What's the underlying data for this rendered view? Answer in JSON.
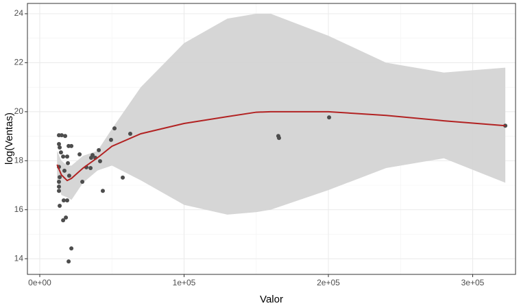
{
  "chart_data": {
    "type": "scatter",
    "x_label": "Valor",
    "y_label": "log(Ventas)",
    "xlim": [
      -8550,
      329700
    ],
    "ylim": [
      13.36,
      24.42
    ],
    "xticks": [
      {
        "value": 0,
        "label": "0e+00"
      },
      {
        "value": 100000,
        "label": "1e+05"
      },
      {
        "value": 200000,
        "label": "2e+05"
      },
      {
        "value": 300000,
        "label": "3e+05"
      }
    ],
    "yticks": [
      14,
      16,
      18,
      20,
      22,
      24
    ],
    "grid": true,
    "points": {
      "color": "#4d4d4d",
      "x": [
        13300,
        15200,
        17600,
        13300,
        13800,
        14700,
        16200,
        19000,
        20000,
        21900,
        19500,
        13300,
        13800,
        13300,
        13300,
        13300,
        13800,
        16600,
        19000,
        16200,
        18100,
        21900,
        20000,
        17100,
        20400,
        27600,
        29500,
        32300,
        35200,
        35600,
        36600,
        38500,
        40900,
        41800,
        43700,
        49400,
        51800,
        57500,
        62700,
        165300,
        165800,
        200500,
        322600
      ],
      "y": [
        19.04,
        19.04,
        19.01,
        18.68,
        18.54,
        18.34,
        18.17,
        18.17,
        18.6,
        18.6,
        17.9,
        17.75,
        17.33,
        17.14,
        16.94,
        16.77,
        16.16,
        16.38,
        16.38,
        15.57,
        15.68,
        14.42,
        13.89,
        17.59,
        17.39,
        18.26,
        17.14,
        17.73,
        17.7,
        18.12,
        18.23,
        18.12,
        18.43,
        17.98,
        16.77,
        18.85,
        19.32,
        17.31,
        19.1,
        19.01,
        18.93,
        19.77,
        19.43
      ]
    },
    "smooth": {
      "color": "#b22222",
      "band_color": "#d4d4d4",
      "x": [
        12000,
        15000,
        19000,
        22000,
        30000,
        40000,
        50000,
        70000,
        100000,
        130000,
        150000,
        160000,
        200000,
        240000,
        280000,
        322600
      ],
      "y": [
        17.84,
        17.42,
        17.19,
        17.28,
        17.7,
        18.12,
        18.59,
        19.1,
        19.52,
        19.8,
        19.98,
        20.0,
        20.0,
        19.85,
        19.63,
        19.43
      ],
      "lower": [
        17.14,
        16.6,
        16.5,
        16.4,
        17.1,
        17.6,
        17.8,
        17.2,
        16.2,
        15.8,
        15.9,
        16.0,
        16.8,
        17.7,
        18.1,
        17.1
      ],
      "upper": [
        18.4,
        18.0,
        17.8,
        17.8,
        18.2,
        18.4,
        19.3,
        21.0,
        22.8,
        23.8,
        24.0,
        24.0,
        23.1,
        22.0,
        21.6,
        21.8
      ]
    }
  }
}
